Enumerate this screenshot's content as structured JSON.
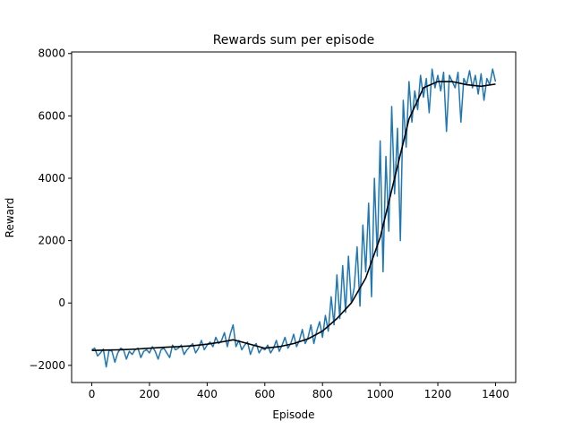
{
  "chart_data": {
    "type": "line",
    "title": "Rewards sum per episode",
    "xlabel": "Episode",
    "ylabel": "Reward",
    "xlim": [
      -70,
      1470
    ],
    "ylim": [
      -2550,
      8050
    ],
    "xticks": [
      0,
      200,
      400,
      600,
      800,
      1000,
      1200,
      1400
    ],
    "yticks": [
      -2000,
      0,
      2000,
      4000,
      6000,
      8000
    ],
    "grid": false,
    "legend": "none",
    "series": [
      {
        "color": "#1f77b4",
        "style": "raw",
        "x": [
          0,
          10,
          20,
          30,
          40,
          50,
          60,
          70,
          80,
          90,
          100,
          110,
          120,
          130,
          140,
          150,
          160,
          170,
          180,
          190,
          200,
          210,
          220,
          230,
          240,
          250,
          260,
          270,
          280,
          290,
          300,
          310,
          320,
          330,
          340,
          350,
          360,
          370,
          380,
          390,
          400,
          410,
          420,
          430,
          440,
          450,
          460,
          470,
          480,
          490,
          500,
          510,
          520,
          530,
          540,
          550,
          560,
          570,
          580,
          590,
          600,
          610,
          620,
          630,
          640,
          650,
          660,
          670,
          680,
          690,
          700,
          710,
          720,
          730,
          740,
          750,
          760,
          770,
          780,
          790,
          800,
          810,
          820,
          830,
          840,
          850,
          860,
          870,
          880,
          890,
          900,
          910,
          920,
          930,
          940,
          950,
          960,
          970,
          980,
          990,
          1000,
          1010,
          1020,
          1030,
          1040,
          1050,
          1060,
          1070,
          1080,
          1090,
          1100,
          1110,
          1120,
          1130,
          1140,
          1150,
          1160,
          1170,
          1180,
          1190,
          1200,
          1210,
          1220,
          1230,
          1240,
          1250,
          1260,
          1270,
          1280,
          1290,
          1300,
          1310,
          1320,
          1330,
          1340,
          1350,
          1360,
          1370,
          1380,
          1390,
          1400
        ],
        "y": [
          -1500,
          -1450,
          -1700,
          -1600,
          -1480,
          -2050,
          -1500,
          -1550,
          -1900,
          -1600,
          -1450,
          -1500,
          -1800,
          -1550,
          -1650,
          -1500,
          -1450,
          -1750,
          -1550,
          -1500,
          -1600,
          -1400,
          -1550,
          -1800,
          -1500,
          -1450,
          -1600,
          -1750,
          -1350,
          -1500,
          -1450,
          -1350,
          -1650,
          -1500,
          -1400,
          -1300,
          -1600,
          -1450,
          -1200,
          -1500,
          -1350,
          -1250,
          -1400,
          -1100,
          -1300,
          -1200,
          -950,
          -1400,
          -1000,
          -700,
          -1400,
          -1200,
          -1500,
          -1350,
          -1250,
          -1650,
          -1400,
          -1300,
          -1600,
          -1450,
          -1500,
          -1350,
          -1600,
          -1450,
          -1200,
          -1550,
          -1350,
          -1100,
          -1450,
          -1300,
          -1000,
          -1400,
          -1200,
          -850,
          -1300,
          -1100,
          -700,
          -1300,
          -900,
          -600,
          -1100,
          -400,
          -900,
          200,
          -700,
          900,
          -500,
          1200,
          -300,
          1500,
          0,
          500,
          1800,
          -100,
          2500,
          1000,
          3200,
          200,
          4000,
          1500,
          5200,
          1000,
          4700,
          2300,
          6300,
          3500,
          5600,
          2000,
          6500,
          5000,
          7100,
          5800,
          6800,
          6200,
          7300,
          6600,
          7200,
          6100,
          7500,
          6900,
          7300,
          6800,
          7400,
          5500,
          7300,
          7100,
          6900,
          7400,
          5800,
          7200,
          7000,
          7450,
          6900,
          7300,
          6700,
          7350,
          6500,
          7200,
          7000,
          7500,
          7100
        ]
      },
      {
        "color": "#000000",
        "style": "smoothed",
        "x": [
          0,
          50,
          100,
          150,
          200,
          250,
          300,
          350,
          400,
          450,
          490,
          520,
          560,
          600,
          650,
          700,
          750,
          800,
          850,
          900,
          950,
          1000,
          1050,
          1100,
          1150,
          1200,
          1250,
          1300,
          1350,
          1400
        ],
        "y": [
          -1520,
          -1510,
          -1500,
          -1480,
          -1450,
          -1420,
          -1400,
          -1370,
          -1320,
          -1250,
          -1180,
          -1250,
          -1350,
          -1450,
          -1400,
          -1300,
          -1150,
          -900,
          -500,
          0,
          800,
          2100,
          4000,
          5900,
          6900,
          7100,
          7100,
          7000,
          6950,
          7020
        ]
      }
    ]
  }
}
